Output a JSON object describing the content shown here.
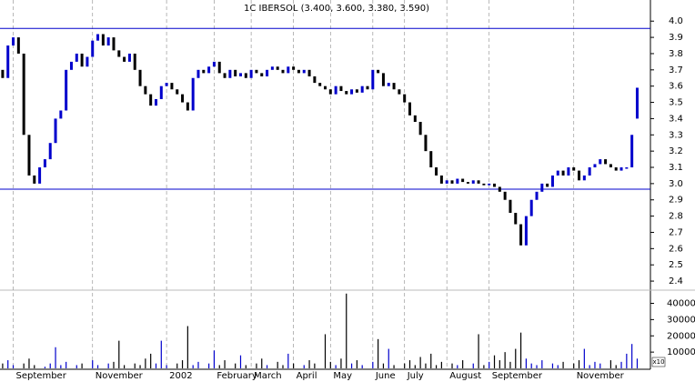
{
  "chart_data": {
    "type": "candlestick",
    "title": "1C IBERSOL (3.400, 3.600, 3.380, 3.590)",
    "open": [
      3.7,
      3.65,
      3.85,
      3.9,
      3.8,
      3.3,
      3.05,
      3.0,
      3.1,
      3.15,
      3.25,
      3.4,
      3.45,
      3.7,
      3.75,
      3.8,
      3.72,
      3.78,
      3.88,
      3.92,
      3.85,
      3.9,
      3.82,
      3.78,
      3.75,
      3.8,
      3.7,
      3.6,
      3.55,
      3.48,
      3.52,
      3.6,
      3.62,
      3.58,
      3.55,
      3.5,
      3.45,
      3.65,
      3.7,
      3.68,
      3.72,
      3.75,
      3.68,
      3.65,
      3.7,
      3.66,
      3.68,
      3.65,
      3.7,
      3.68,
      3.66,
      3.7,
      3.72,
      3.7,
      3.68,
      3.72,
      3.7,
      3.68,
      3.7,
      3.66,
      3.62,
      3.6,
      3.58,
      3.55,
      3.6,
      3.57,
      3.55,
      3.58,
      3.56,
      3.6,
      3.58,
      3.7,
      3.68,
      3.6,
      3.62,
      3.58,
      3.55,
      3.5,
      3.42,
      3.38,
      3.3,
      3.2,
      3.1,
      3.05,
      3.0,
      3.02,
      3.0,
      3.03,
      3.01,
      3.0,
      3.02,
      3.0,
      2.99,
      3.0,
      2.98,
      2.95,
      2.9,
      2.82,
      2.75,
      2.62,
      2.8,
      2.9,
      2.95,
      3.0,
      2.98,
      3.05,
      3.08,
      3.05,
      3.1,
      3.08,
      3.02,
      3.05,
      3.1,
      3.12,
      3.15,
      3.12,
      3.1,
      3.08,
      3.1,
      3.1,
      3.4
    ],
    "close": [
      3.65,
      3.85,
      3.9,
      3.8,
      3.3,
      3.05,
      3.0,
      3.1,
      3.15,
      3.25,
      3.4,
      3.45,
      3.7,
      3.75,
      3.8,
      3.72,
      3.78,
      3.88,
      3.92,
      3.85,
      3.9,
      3.82,
      3.78,
      3.75,
      3.8,
      3.7,
      3.6,
      3.55,
      3.48,
      3.52,
      3.6,
      3.62,
      3.58,
      3.55,
      3.5,
      3.45,
      3.65,
      3.7,
      3.68,
      3.72,
      3.75,
      3.68,
      3.65,
      3.7,
      3.66,
      3.68,
      3.65,
      3.7,
      3.68,
      3.66,
      3.7,
      3.72,
      3.7,
      3.68,
      3.72,
      3.7,
      3.68,
      3.7,
      3.66,
      3.62,
      3.6,
      3.58,
      3.55,
      3.6,
      3.57,
      3.55,
      3.58,
      3.56,
      3.6,
      3.58,
      3.7,
      3.68,
      3.6,
      3.62,
      3.58,
      3.55,
      3.5,
      3.42,
      3.38,
      3.3,
      3.2,
      3.1,
      3.05,
      3.0,
      3.02,
      3.0,
      3.03,
      3.01,
      3.0,
      3.02,
      3.0,
      2.99,
      3.0,
      2.98,
      2.95,
      2.9,
      2.82,
      2.75,
      2.62,
      2.8,
      2.9,
      2.95,
      3.0,
      2.98,
      3.05,
      3.08,
      3.05,
      3.1,
      3.08,
      3.02,
      3.05,
      3.1,
      3.12,
      3.15,
      3.12,
      3.1,
      3.08,
      3.1,
      3.1,
      3.3,
      3.59
    ],
    "volume": [
      3000,
      5000,
      2000,
      0,
      3000,
      6000,
      2000,
      0,
      1000,
      3000,
      13000,
      2000,
      4000,
      0,
      2000,
      3000,
      0,
      5000,
      2000,
      0,
      3000,
      4000,
      17000,
      2000,
      0,
      3000,
      2000,
      6000,
      9000,
      3000,
      17000,
      2000,
      0,
      3000,
      5000,
      26000,
      2000,
      4000,
      0,
      3000,
      11000,
      2000,
      5000,
      0,
      3000,
      8000,
      2000,
      0,
      3000,
      6000,
      2000,
      0,
      4000,
      2000,
      9000,
      3000,
      0,
      2000,
      5000,
      3000,
      0,
      21000,
      4000,
      2000,
      6000,
      46000,
      3000,
      5000,
      2000,
      0,
      4000,
      18000,
      3000,
      12000,
      2000,
      0,
      3000,
      5000,
      2000,
      7000,
      3000,
      9000,
      2000,
      4000,
      0,
      3000,
      2000,
      5000,
      0,
      3000,
      21000,
      2000,
      4000,
      8000,
      5000,
      10000,
      4000,
      12000,
      22000,
      6000,
      3000,
      2000,
      5000,
      0,
      3000,
      2000,
      4000,
      0,
      3000,
      5000,
      12000,
      2000,
      4000,
      3000,
      0,
      5000,
      2000,
      4000,
      9000,
      15000,
      6000
    ],
    "xlim": [
      -0.5,
      122.5
    ],
    "xticks": [
      {
        "value": 2,
        "label": "September"
      },
      {
        "value": 17,
        "label": "November"
      },
      {
        "value": 31,
        "label": "2002"
      },
      {
        "value": 40,
        "label": "February"
      },
      {
        "value": 47,
        "label": "March"
      },
      {
        "value": 55,
        "label": "April"
      },
      {
        "value": 62,
        "label": "May"
      },
      {
        "value": 70,
        "label": "June"
      },
      {
        "value": 76,
        "label": "July"
      },
      {
        "value": 84,
        "label": "August"
      },
      {
        "value": 92,
        "label": "September"
      },
      {
        "value": 108,
        "label": "November"
      }
    ],
    "ylim": [
      2.35,
      4.13
    ],
    "yticks": [
      2.4,
      2.5,
      2.6,
      2.7,
      2.8,
      2.9,
      {
        "value": 3,
        "label": "3.0"
      },
      3.1,
      3.2,
      3.3,
      3.4,
      3.5,
      3.6,
      3.7,
      3.8,
      3.9,
      {
        "value": 4,
        "label": "4.0"
      }
    ],
    "volume_ylim": [
      0,
      47000
    ],
    "volume_yticks": [
      10000,
      20000,
      30000,
      40000
    ],
    "volume_unit_label": "x10",
    "hlines": [
      3.955,
      2.966
    ],
    "up_color": "#0000cc",
    "down_color": "#000000",
    "hline_color": "#0000cc",
    "grid_color": "#999999"
  }
}
